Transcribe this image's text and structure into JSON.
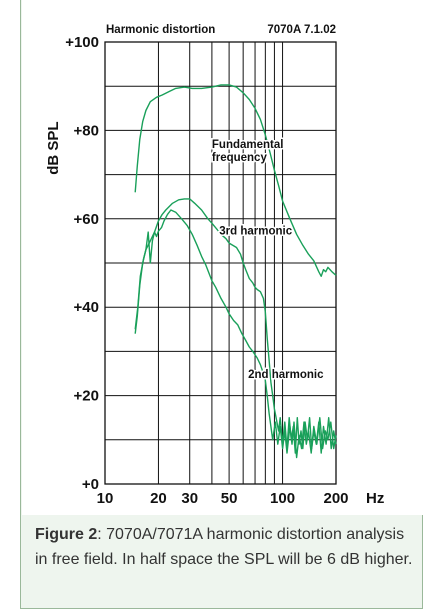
{
  "chart_data": {
    "type": "line",
    "title": "Harmonic distortion",
    "model_label": "7070A 7.1.02",
    "xlabel": "Hz",
    "ylabel": "dB SPL",
    "x_scale": "log",
    "xlim": [
      10,
      200
    ],
    "ylim": [
      0,
      100
    ],
    "x_tick_labels": [
      {
        "value": 10,
        "label": "10"
      },
      {
        "value": 20,
        "label": "20"
      },
      {
        "value": 30,
        "label": "30"
      },
      {
        "value": 50,
        "label": "50"
      },
      {
        "value": 100,
        "label": "100"
      },
      {
        "value": 200,
        "label": "200"
      }
    ],
    "y_tick_labels": [
      {
        "value": 0,
        "label": "+0"
      },
      {
        "value": 20,
        "label": "+20"
      },
      {
        "value": 40,
        "label": "+40"
      },
      {
        "value": 60,
        "label": "+60"
      },
      {
        "value": 80,
        "label": "+80"
      },
      {
        "value": 100,
        "label": "+100"
      }
    ],
    "grid": true,
    "line_color": "#1aa05a",
    "series": [
      {
        "name": "Fundamental frequency",
        "label_lines": [
          "Fundamental",
          "frequency"
        ],
        "label_at": [
          40,
          76
        ],
        "points": [
          [
            14.8,
            66
          ],
          [
            15.2,
            72
          ],
          [
            15.7,
            78
          ],
          [
            16.3,
            82
          ],
          [
            17,
            84.5
          ],
          [
            18,
            86.5
          ],
          [
            19.5,
            87.5
          ],
          [
            21,
            88
          ],
          [
            23,
            88.8
          ],
          [
            25,
            89.5
          ],
          [
            28,
            89.8
          ],
          [
            31,
            89.5
          ],
          [
            35,
            89.5
          ],
          [
            40,
            89.8
          ],
          [
            45,
            90.3
          ],
          [
            50,
            90.3
          ],
          [
            55,
            89.8
          ],
          [
            60,
            88.5
          ],
          [
            65,
            87
          ],
          [
            70,
            85
          ],
          [
            75,
            82.5
          ],
          [
            80,
            79
          ],
          [
            85,
            75
          ],
          [
            90,
            71
          ],
          [
            95,
            67.5
          ],
          [
            100,
            64
          ],
          [
            110,
            60
          ],
          [
            120,
            56.5
          ],
          [
            130,
            54
          ],
          [
            140,
            52
          ],
          [
            150,
            50.5
          ],
          [
            160,
            48
          ],
          [
            165,
            47
          ],
          [
            170,
            48.5
          ],
          [
            175,
            48
          ],
          [
            180,
            49
          ],
          [
            185,
            48.5
          ],
          [
            190,
            48
          ],
          [
            200,
            47.2
          ]
        ]
      },
      {
        "name": "3rd harmonic",
        "label_lines": [
          "3rd harmonic"
        ],
        "label_at": [
          44,
          56.5
        ],
        "points": [
          [
            14.8,
            34
          ],
          [
            15.2,
            38
          ],
          [
            15.7,
            45
          ],
          [
            16.3,
            50
          ],
          [
            17,
            53
          ],
          [
            18,
            55
          ],
          [
            19,
            57
          ],
          [
            20,
            59.5
          ],
          [
            21,
            61
          ],
          [
            22,
            62
          ],
          [
            24,
            63.5
          ],
          [
            26,
            64.3
          ],
          [
            28,
            64.5
          ],
          [
            30,
            64.5
          ],
          [
            32,
            63.5
          ],
          [
            35,
            62
          ],
          [
            38,
            60
          ],
          [
            40,
            59
          ],
          [
            43,
            57.5
          ],
          [
            45,
            56.5
          ],
          [
            48,
            55.5
          ],
          [
            50,
            54.5
          ],
          [
            55,
            53.5
          ],
          [
            58,
            52
          ],
          [
            60,
            50
          ],
          [
            62,
            48.5
          ],
          [
            65,
            46.5
          ],
          [
            68,
            45.5
          ],
          [
            70,
            44.5
          ],
          [
            72,
            44
          ],
          [
            75,
            43.5
          ],
          [
            78,
            42
          ],
          [
            80,
            39
          ],
          [
            82,
            33
          ],
          [
            84,
            28
          ],
          [
            86,
            23
          ],
          [
            88,
            20
          ],
          [
            90,
            17
          ],
          [
            92,
            15
          ],
          [
            95,
            12
          ],
          [
            97,
            15
          ],
          [
            100,
            9
          ],
          [
            103,
            14
          ],
          [
            106,
            8
          ],
          [
            109,
            15
          ],
          [
            112,
            10
          ],
          [
            115,
            13
          ],
          [
            118,
            7
          ],
          [
            121,
            15
          ],
          [
            124,
            9
          ],
          [
            127,
            12
          ],
          [
            130,
            8
          ],
          [
            134,
            14
          ],
          [
            138,
            10
          ],
          [
            142,
            15
          ],
          [
            146,
            8
          ],
          [
            150,
            12
          ],
          [
            155,
            9
          ],
          [
            160,
            14
          ],
          [
            165,
            7
          ],
          [
            170,
            13
          ],
          [
            176,
            9
          ],
          [
            182,
            15
          ],
          [
            188,
            8
          ],
          [
            194,
            12
          ],
          [
            200,
            9
          ]
        ]
      },
      {
        "name": "2nd harmonic",
        "label_lines": [
          "2nd harmonic"
        ],
        "label_at": [
          64,
          24
        ],
        "points": [
          [
            14.8,
            35
          ],
          [
            15.3,
            40
          ],
          [
            15.8,
            47
          ],
          [
            16.5,
            51
          ],
          [
            17,
            53
          ],
          [
            17.5,
            57
          ],
          [
            18,
            50
          ],
          [
            18.5,
            55
          ],
          [
            19,
            57
          ],
          [
            19.5,
            56
          ],
          [
            20,
            57.2
          ],
          [
            20.8,
            58
          ],
          [
            21.5,
            59.5
          ],
          [
            22.5,
            61
          ],
          [
            23.5,
            62
          ],
          [
            25,
            61.5
          ],
          [
            27,
            60
          ],
          [
            29,
            58.5
          ],
          [
            31,
            56.5
          ],
          [
            33,
            54
          ],
          [
            35,
            51.5
          ],
          [
            37,
            49.5
          ],
          [
            40,
            46
          ],
          [
            42,
            44.5
          ],
          [
            45,
            42
          ],
          [
            48,
            40
          ],
          [
            50,
            38.5
          ],
          [
            53,
            37
          ],
          [
            56,
            36
          ],
          [
            59,
            34
          ],
          [
            62,
            32.5
          ],
          [
            65,
            31
          ],
          [
            68,
            30
          ],
          [
            72,
            28.5
          ],
          [
            75,
            27
          ],
          [
            78,
            25
          ],
          [
            80,
            23.5
          ],
          [
            82,
            20
          ],
          [
            84,
            16
          ],
          [
            86,
            13
          ],
          [
            88,
            10
          ],
          [
            91,
            14
          ],
          [
            94,
            9
          ],
          [
            97,
            13
          ],
          [
            100,
            8
          ],
          [
            103,
            12
          ],
          [
            106,
            7
          ],
          [
            110,
            13
          ],
          [
            113,
            9
          ],
          [
            116,
            14
          ],
          [
            120,
            6
          ],
          [
            124,
            11
          ],
          [
            128,
            8
          ],
          [
            132,
            14
          ],
          [
            136,
            9
          ],
          [
            140,
            12
          ],
          [
            145,
            7
          ],
          [
            150,
            13
          ],
          [
            156,
            9
          ],
          [
            162,
            15
          ],
          [
            168,
            8
          ],
          [
            174,
            12
          ],
          [
            180,
            10
          ],
          [
            187,
            14
          ],
          [
            194,
            8
          ],
          [
            200,
            11
          ]
        ]
      }
    ]
  },
  "caption": {
    "figure_label": "Figure 2",
    "text": ": 7070A/7071A harmonic distortion analysis in free field. In half space the SPL will be 6 dB higher."
  }
}
